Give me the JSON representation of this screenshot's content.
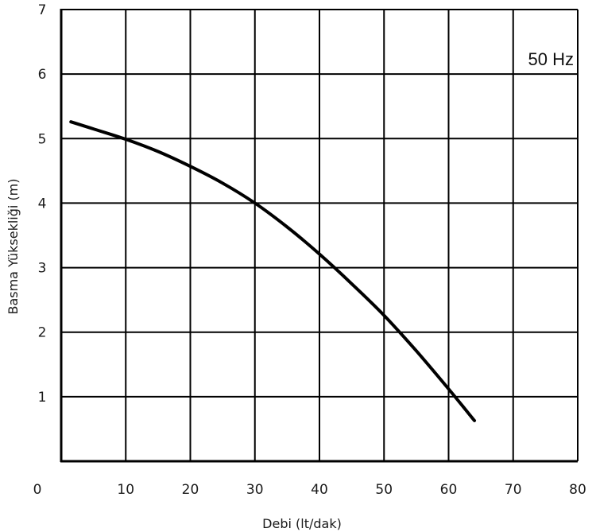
{
  "chart_data": {
    "type": "line",
    "xlabel": "Debi (lt/dak)",
    "ylabel": "Basma Yüksekliği (m)",
    "annotation": "50 Hz",
    "xlim": [
      0,
      80
    ],
    "ylim": [
      0,
      7
    ],
    "x_ticks": [
      0,
      10,
      20,
      30,
      40,
      50,
      60,
      70,
      80
    ],
    "y_ticks": [
      1,
      2,
      3,
      4,
      5,
      6,
      7
    ],
    "grid": true,
    "line_color": "#000000",
    "series": [
      {
        "x": [
          1.5,
          5,
          10,
          15,
          20,
          25,
          30,
          35,
          40,
          45,
          50,
          55,
          60,
          64
        ],
        "y": [
          5.26,
          5.15,
          4.99,
          4.8,
          4.57,
          4.31,
          4.0,
          3.63,
          3.21,
          2.75,
          2.26,
          1.71,
          1.12,
          0.63
        ]
      }
    ]
  }
}
